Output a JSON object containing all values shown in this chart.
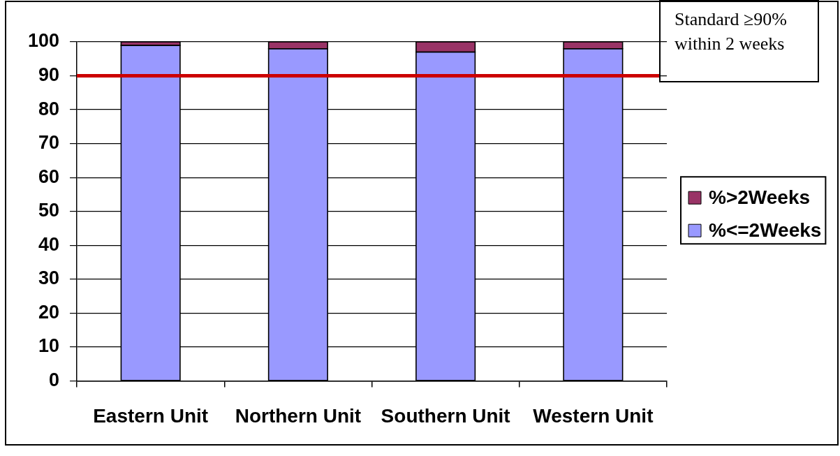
{
  "chart_data": {
    "type": "bar",
    "categories": [
      "Eastern Unit",
      "Northern Unit",
      "Southern Unit",
      "Western Unit"
    ],
    "series": [
      {
        "name": "%<=2Weeks",
        "color": "#9999ff",
        "values": [
          99,
          98,
          97,
          98
        ]
      },
      {
        "name": "%>2Weeks",
        "color": "#993366",
        "values": [
          1,
          2,
          3,
          2
        ]
      }
    ],
    "stacked": true,
    "ylim": [
      0,
      100
    ],
    "yticks": [
      0,
      10,
      20,
      30,
      40,
      50,
      60,
      70,
      80,
      90,
      100
    ],
    "grid": "y",
    "legend": "right",
    "ref_lines": [
      {
        "axis": "y",
        "value": 90,
        "label": "Standard ≥90% within 2 weeks",
        "color": "#cc0000"
      }
    ]
  }
}
